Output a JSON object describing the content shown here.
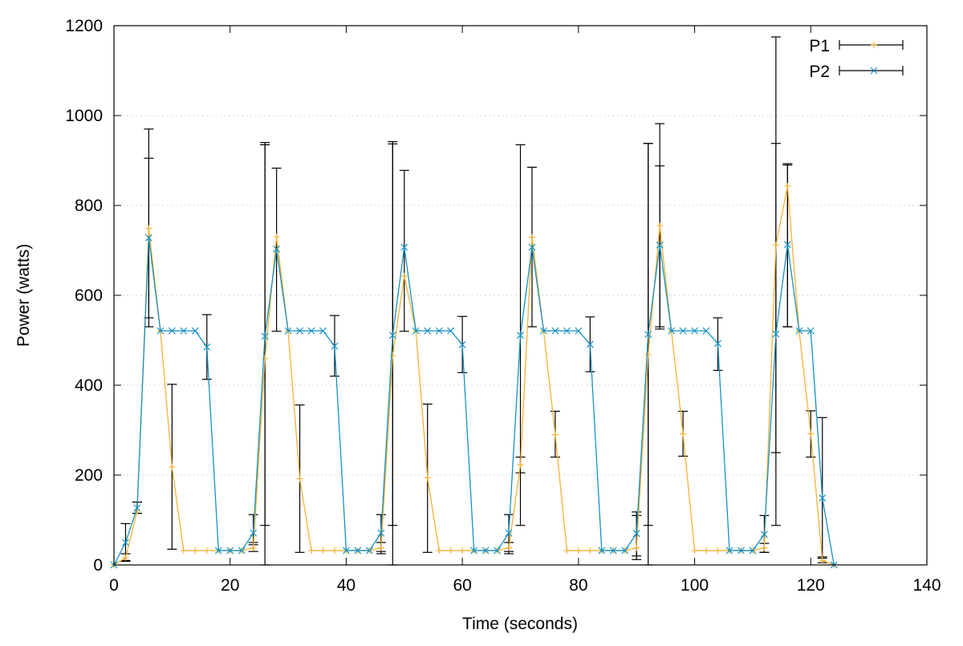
{
  "chart_data": {
    "type": "line",
    "title": "",
    "xlabel": "Time (seconds)",
    "ylabel": "Power (watts)",
    "xlim": [
      0,
      140
    ],
    "ylim": [
      0,
      1200
    ],
    "xticks": [
      0,
      20,
      40,
      60,
      80,
      100,
      120,
      140
    ],
    "yticks": [
      0,
      200,
      400,
      600,
      800,
      1000,
      1200
    ],
    "grid": "horizontal dotted",
    "legend": "top-right",
    "error_bar_color": "#000000",
    "x": [
      0,
      2,
      4,
      6,
      8,
      10,
      12,
      14,
      16,
      18,
      20,
      22,
      24,
      26,
      28,
      30,
      32,
      34,
      36,
      38,
      40,
      42,
      44,
      46,
      48,
      50,
      52,
      54,
      56,
      58,
      60,
      62,
      64,
      66,
      68,
      70,
      72,
      74,
      76,
      78,
      80,
      82,
      84,
      86,
      88,
      90,
      92,
      94,
      96,
      98,
      100,
      102,
      104,
      106,
      108,
      110,
      112,
      114,
      116,
      118,
      120,
      122,
      124
    ],
    "series": [
      {
        "name": "P1",
        "color": "#f7b133",
        "marker": "plus",
        "values": [
          0,
          16,
          120,
          749,
          521,
          218,
          32,
          32,
          32,
          32,
          32,
          32,
          38,
          459,
          730,
          521,
          192,
          32,
          32,
          32,
          32,
          32,
          32,
          38,
          466,
          643,
          521,
          194,
          32,
          32,
          32,
          32,
          32,
          32,
          38,
          223,
          729,
          521,
          290,
          32,
          32,
          32,
          32,
          32,
          32,
          38,
          468,
          755,
          521,
          292,
          32,
          32,
          32,
          32,
          32,
          32,
          38,
          712,
          843,
          521,
          292,
          10,
          0
        ],
        "error_bars": [
          [
            2,
            10,
            25
          ],
          [
            4,
            115,
            140
          ],
          [
            6,
            550,
            905
          ],
          [
            10,
            35,
            402
          ],
          [
            24,
            30,
            50
          ],
          [
            26,
            88,
            935
          ],
          [
            28,
            520,
            883
          ],
          [
            32,
            28,
            356
          ],
          [
            46,
            25,
            50
          ],
          [
            48,
            88,
            937
          ],
          [
            50,
            520,
            878
          ],
          [
            54,
            28,
            358
          ],
          [
            68,
            25,
            50
          ],
          [
            70,
            205,
            240
          ],
          [
            72,
            530,
            885
          ],
          [
            76,
            240,
            342
          ],
          [
            90,
            20,
            110
          ],
          [
            92,
            88,
            938
          ],
          [
            94,
            525,
            888
          ],
          [
            98,
            242,
            342
          ],
          [
            112,
            28,
            48
          ],
          [
            114,
            250,
            938
          ],
          [
            116,
            530,
            893
          ],
          [
            120,
            240,
            343
          ],
          [
            122,
            5,
            18
          ]
        ]
      },
      {
        "name": "P2",
        "color": "#1591c4",
        "marker": "x",
        "values": [
          0,
          50,
          127,
          728,
          521,
          521,
          521,
          521,
          485,
          32,
          32,
          32,
          71,
          509,
          703,
          521,
          521,
          521,
          521,
          487,
          32,
          32,
          32,
          71,
          511,
          707,
          521,
          521,
          521,
          521,
          490,
          32,
          32,
          32,
          71,
          511,
          707,
          521,
          521,
          521,
          521,
          491,
          32,
          32,
          32,
          70,
          513,
          712,
          521,
          521,
          521,
          521,
          493,
          32,
          32,
          32,
          68,
          514,
          713,
          521,
          521,
          149,
          0
        ],
        "error_bars": [
          [
            2,
            8,
            92
          ],
          [
            4,
            115,
            140
          ],
          [
            6,
            530,
            970
          ],
          [
            16,
            413,
            557
          ],
          [
            24,
            45,
            112
          ],
          [
            26,
            0,
            940
          ],
          [
            38,
            420,
            555
          ],
          [
            46,
            30,
            112
          ],
          [
            48,
            0,
            942
          ],
          [
            60,
            428,
            553
          ],
          [
            68,
            30,
            112
          ],
          [
            70,
            88,
            935
          ],
          [
            82,
            430,
            552
          ],
          [
            90,
            12,
            118
          ],
          [
            92,
            0,
            938
          ],
          [
            94,
            530,
            982
          ],
          [
            104,
            433,
            550
          ],
          [
            112,
            28,
            110
          ],
          [
            114,
            88,
            1175
          ],
          [
            116,
            530,
            890
          ],
          [
            122,
            15,
            328
          ]
        ]
      }
    ]
  }
}
